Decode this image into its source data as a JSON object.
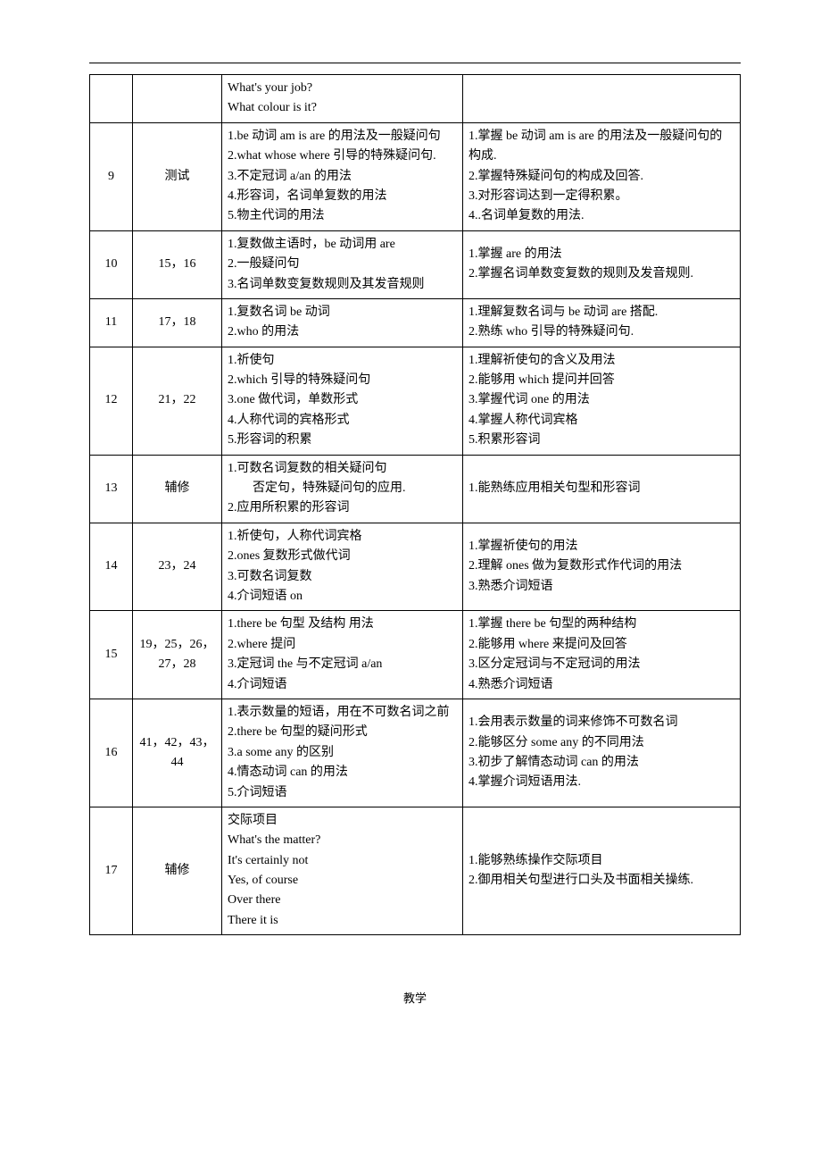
{
  "rows": [
    {
      "num": "",
      "lessons": "",
      "content": "What's your job?\nWhat colour is it?",
      "goal": ""
    },
    {
      "num": "9",
      "lessons": "测试",
      "content": "1.be 动词 am is are 的用法及一般疑问句\n2.what whose where 引导的特殊疑问句.\n3.不定冠词 a/an 的用法\n4.形容词，名词单复数的用法\n5.物主代词的用法",
      "goal": "1.掌握 be 动词 am is are 的用法及一般疑问句的构成.\n2.掌握特殊疑问句的构成及回答.\n3.对形容词达到一定得积累。\n4..名词单复数的用法."
    },
    {
      "num": "10",
      "lessons": "15，16",
      "content": "1.复数做主语时，be 动词用 are\n2.一般疑问句\n3.名词单数变复数规则及其发音规则",
      "goal": "1.掌握 are 的用法\n2.掌握名词单数变复数的规则及发音规则."
    },
    {
      "num": "11",
      "lessons": "17，18",
      "content": "1.复数名词 be 动词\n2.who 的用法",
      "goal": "1.理解复数名词与 be 动词 are 搭配.\n2.熟练 who 引导的特殊疑问句."
    },
    {
      "num": "12",
      "lessons": "21，22",
      "content": "1.祈使句\n2.which 引导的特殊疑问句\n3.one 做代词，单数形式\n4.人称代词的宾格形式\n5.形容词的积累",
      "goal": "1.理解祈使句的含义及用法\n2.能够用 which 提问并回答\n3.掌握代词 one 的用法\n4.掌握人称代词宾格\n5.积累形容词"
    },
    {
      "num": "13",
      "lessons": "辅修",
      "content": "1.可数名词复数的相关疑问句\n<span class=\"sub-indent\">否定句，特殊疑问句的应用.</span>2.应用所积累的形容词",
      "goal": "1.能熟练应用相关句型和形容词"
    },
    {
      "num": "14",
      "lessons": "23，24",
      "content": "1.祈使句，人称代词宾格\n2.ones 复数形式做代词\n3.可数名词复数\n4.介词短语 on",
      "goal": "1.掌握祈使句的用法\n2.理解 ones 做为复数形式作代词的用法\n3.熟悉介词短语"
    },
    {
      "num": "15",
      "lessons": "19，25，26，27，28",
      "content": "1.there be 句型  及结构  用法\n2.where 提问\n3.定冠词 the  与不定冠词 a/an\n4.介词短语",
      "goal": "1.掌握 there be  句型的两种结构\n2.能够用 where 来提问及回答\n3.区分定冠词与不定冠词的用法\n4.熟悉介词短语"
    },
    {
      "num": "16",
      "lessons": "41，42，43，44",
      "content": "1.表示数量的短语，用在不可数名词之前\n2.there be 句型的疑问形式\n3.a some any  的区别\n4.情态动词 can 的用法\n5.介词短语",
      "goal": "1.会用表示数量的词来修饰不可数名词\n2.能够区分 some any 的不同用法\n3.初步了解情态动词 can 的用法\n4.掌握介词短语用法."
    },
    {
      "num": "17",
      "lessons": "辅修",
      "content": "交际项目\nWhat's the matter?\nIt's certainly not\nYes, of course\nOver there\nThere it is",
      "goal": "1.能够熟练操作交际项目\n2.御用相关句型进行口头及书面相关操练."
    }
  ],
  "footer": "教学"
}
